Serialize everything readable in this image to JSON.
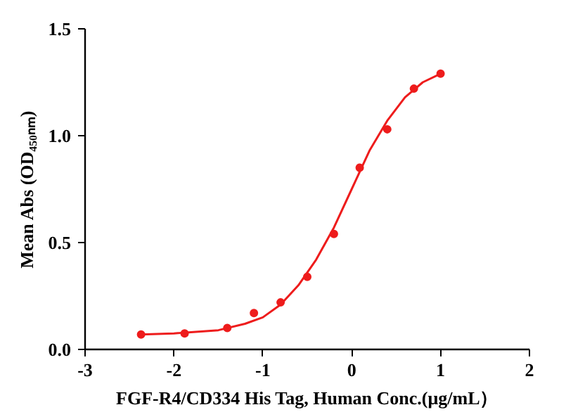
{
  "chart_data": {
    "type": "scatter",
    "xlabel": "FGF-R4/CD334 His Tag, Human Conc.(μg/mL）",
    "ylabel": "Mean Abs (OD₄₅₀ₙₘ)",
    "x": [
      -2.37,
      -1.88,
      -1.4,
      -1.1,
      -0.8,
      -0.5,
      -0.2,
      0.09,
      0.4,
      0.7,
      1.0
    ],
    "series": [
      {
        "color": "#ee1c1c",
        "values": [
          0.07,
          0.075,
          0.1,
          0.17,
          0.22,
          0.34,
          0.54,
          0.85,
          1.03,
          1.22,
          1.29
        ]
      },
      {
        "type": "line",
        "marker": "none",
        "color": "#ee1c1c",
        "x": [
          -2.37,
          -2.0,
          -1.5,
          -1.2,
          -1.0,
          -0.8,
          -0.6,
          -0.4,
          -0.2,
          0.0,
          0.2,
          0.4,
          0.6,
          0.8,
          1.0
        ],
        "values": [
          0.07,
          0.075,
          0.09,
          0.12,
          0.15,
          0.21,
          0.3,
          0.42,
          0.57,
          0.75,
          0.93,
          1.07,
          1.18,
          1.25,
          1.29
        ]
      }
    ],
    "marker": "circle",
    "grid": false,
    "xlim": [
      -3,
      2
    ],
    "xticks": [
      -3,
      -2,
      -1,
      0,
      1,
      2
    ],
    "ylim": [
      0,
      1.5
    ],
    "yticks": [
      {
        "value": 0,
        "label": "0.0"
      },
      {
        "value": 0.5,
        "label": "0.5"
      },
      {
        "value": 1,
        "label": "1.0"
      },
      {
        "value": 1.5,
        "label": "1.5"
      }
    ]
  }
}
